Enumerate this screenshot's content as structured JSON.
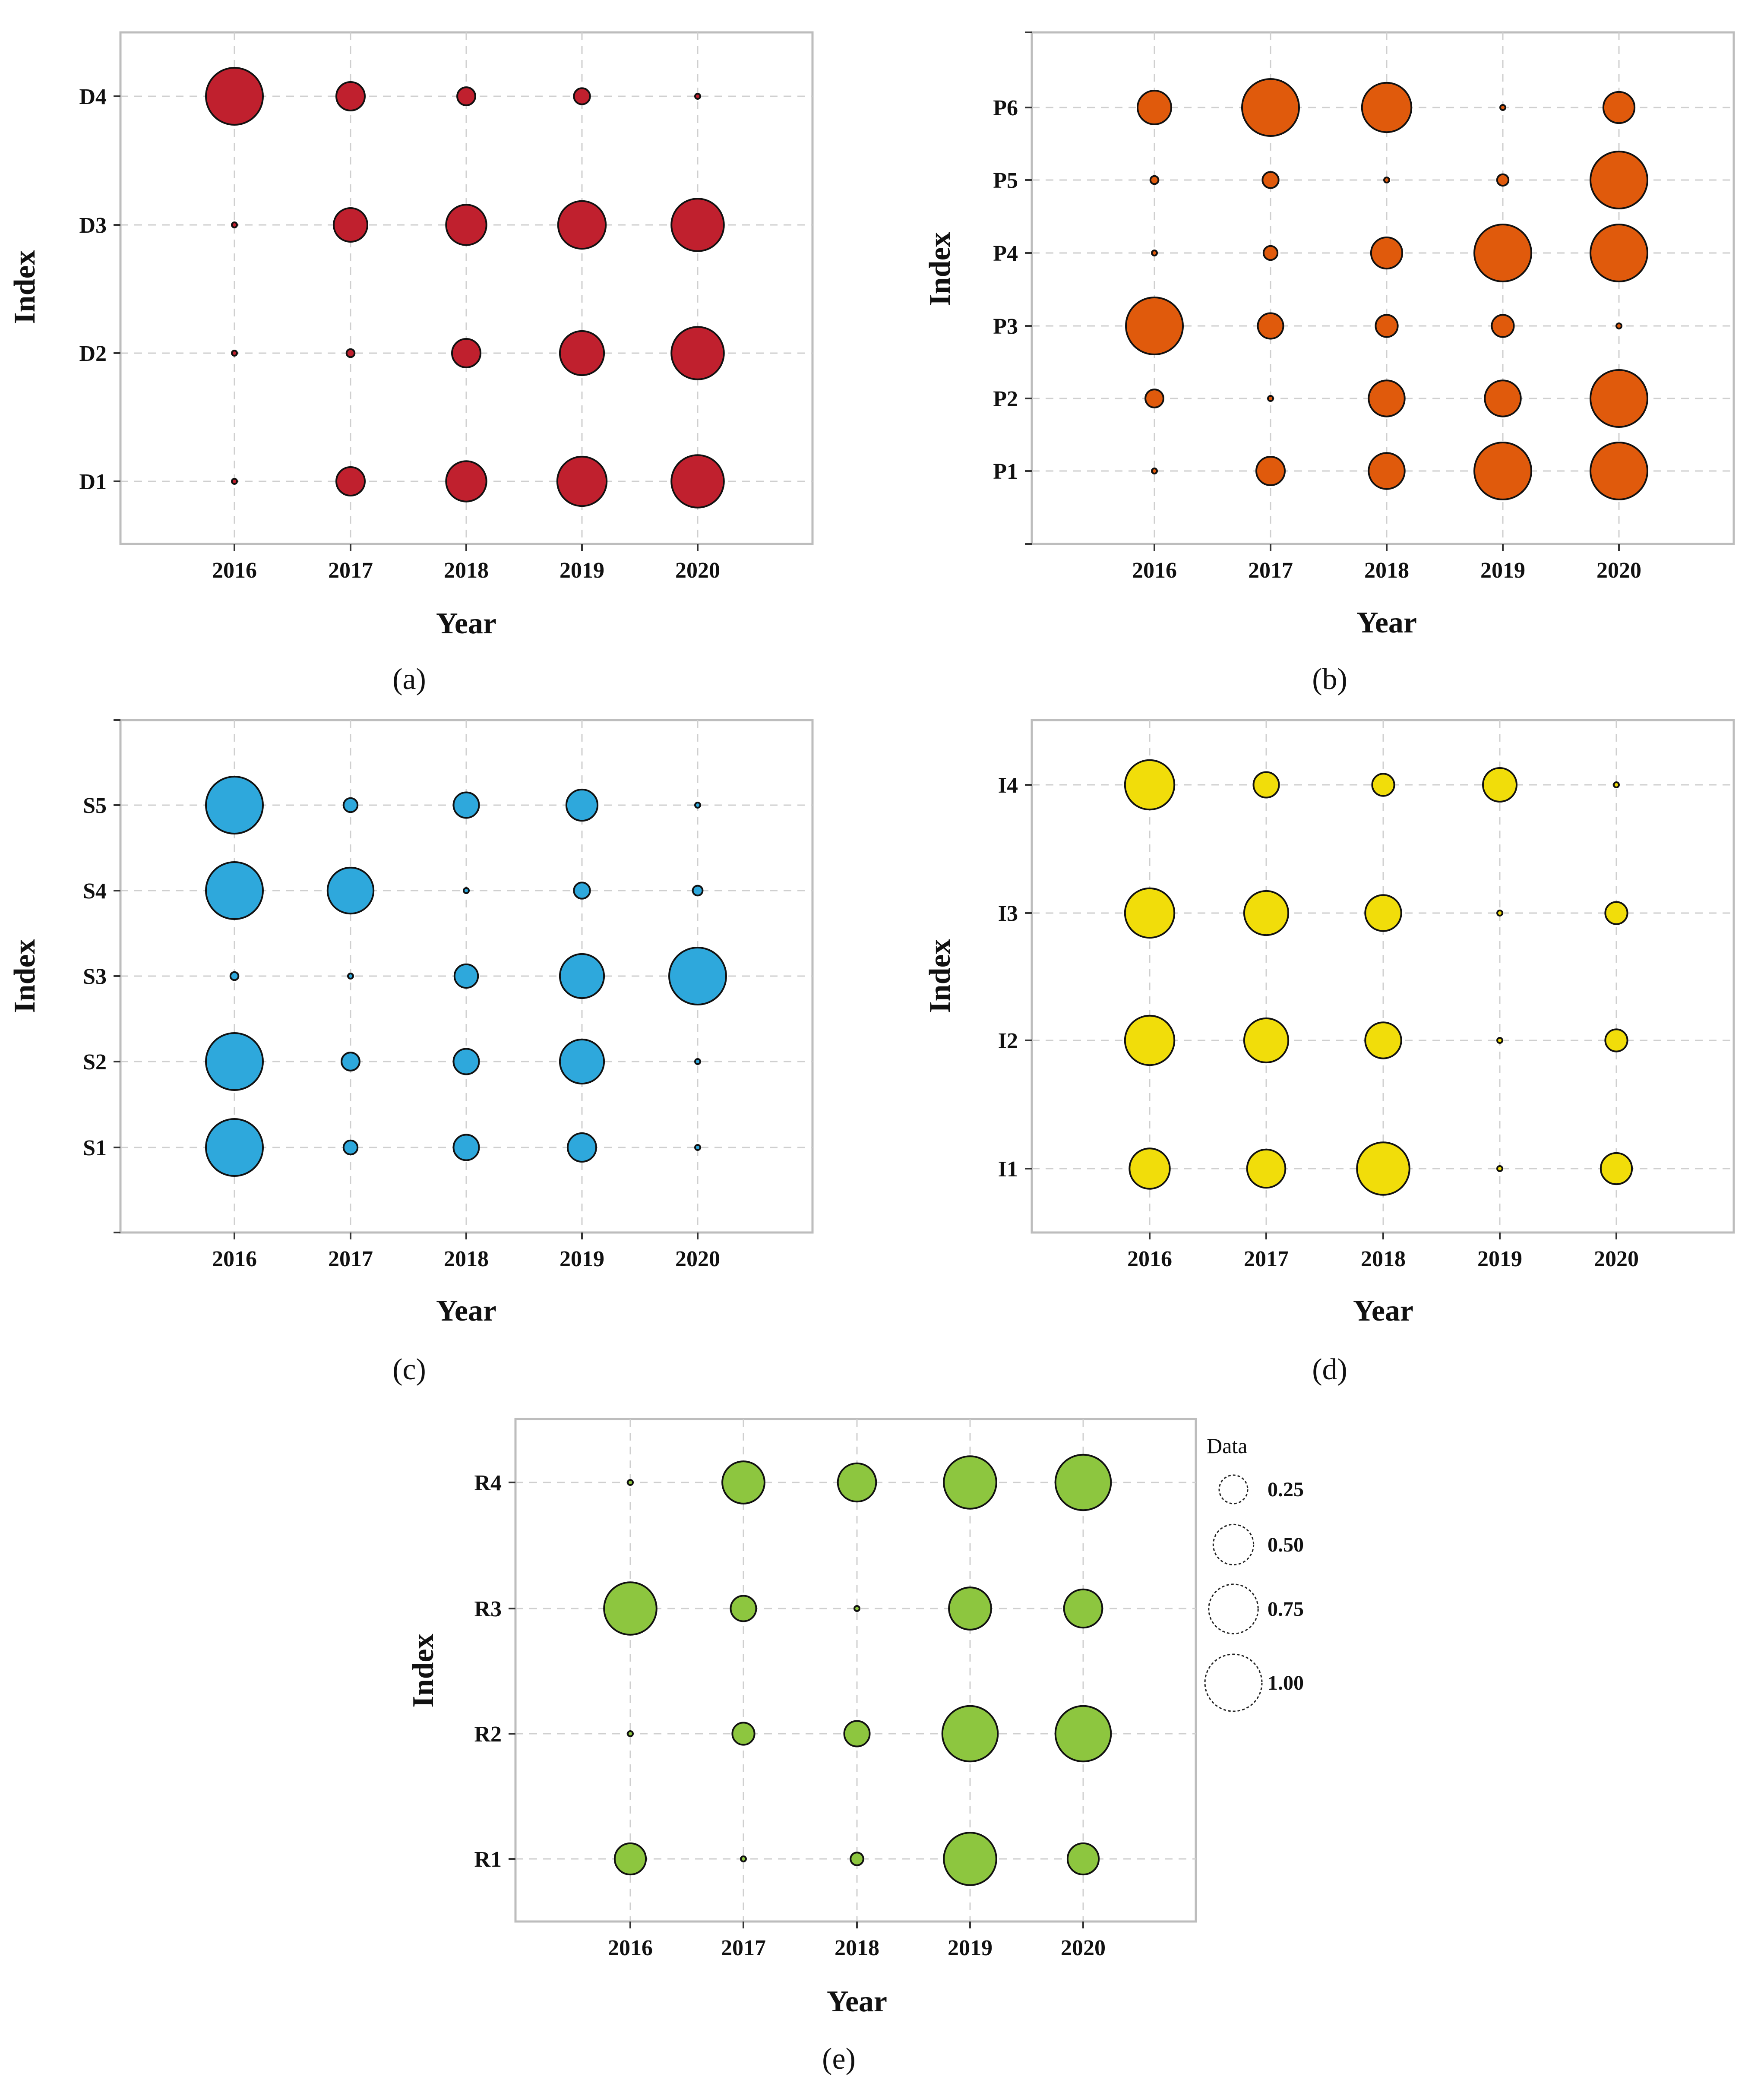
{
  "legend": {
    "title": "Data",
    "entries": [
      {
        "label": "0.25",
        "value": 0.25
      },
      {
        "label": "0.50",
        "value": 0.5
      },
      {
        "label": "0.75",
        "value": 0.75
      },
      {
        "label": "1.00",
        "value": 1.0
      }
    ]
  },
  "chart_data": [
    {
      "type": "scatter",
      "panel_label": "(a)",
      "xlabel": "Year",
      "ylabel": "Index",
      "color": "#c0202e",
      "categories": [
        "2016",
        "2017",
        "2018",
        "2019",
        "2020"
      ],
      "y_categories": [
        "D1",
        "D2",
        "D3",
        "D4"
      ],
      "series": [
        {
          "name": "D1",
          "values": [
            0.0,
            0.25,
            0.5,
            0.75,
            0.85
          ]
        },
        {
          "name": "D2",
          "values": [
            0.0,
            0.02,
            0.25,
            0.6,
            0.85
          ]
        },
        {
          "name": "D3",
          "values": [
            0.0,
            0.35,
            0.5,
            0.7,
            0.85
          ]
        },
        {
          "name": "D4",
          "values": [
            1.0,
            0.25,
            0.1,
            0.08,
            0.0
          ]
        }
      ]
    },
    {
      "type": "scatter",
      "panel_label": "(b)",
      "xlabel": "Year",
      "ylabel": "Index",
      "color": "#e05a0c",
      "categories": [
        "2016",
        "2017",
        "2018",
        "2019",
        "2020"
      ],
      "y_categories": [
        "P1",
        "P2",
        "P3",
        "P4",
        "P5",
        "P6"
      ],
      "series": [
        {
          "name": "P1",
          "values": [
            0.0,
            0.25,
            0.4,
            1.0,
            1.0
          ]
        },
        {
          "name": "P2",
          "values": [
            0.1,
            0.0,
            0.4,
            0.4,
            1.0
          ]
        },
        {
          "name": "P3",
          "values": [
            1.0,
            0.2,
            0.15,
            0.15,
            0.0
          ]
        },
        {
          "name": "P4",
          "values": [
            0.0,
            0.06,
            0.3,
            1.0,
            1.0
          ]
        },
        {
          "name": "P5",
          "values": [
            0.02,
            0.08,
            0.0,
            0.04,
            1.0
          ]
        },
        {
          "name": "P6",
          "values": [
            0.35,
            1.0,
            0.75,
            0.0,
            0.3
          ]
        }
      ]
    },
    {
      "type": "scatter",
      "panel_label": "(c)",
      "xlabel": "Year",
      "ylabel": "Index",
      "color": "#2ea8dc",
      "categories": [
        "2016",
        "2017",
        "2018",
        "2019",
        "2020"
      ],
      "y_categories": [
        "S1",
        "S2",
        "S3",
        "S4",
        "S5"
      ],
      "series": [
        {
          "name": "S1",
          "values": [
            1.0,
            0.06,
            0.2,
            0.25,
            0.0
          ]
        },
        {
          "name": "S2",
          "values": [
            1.0,
            0.1,
            0.2,
            0.6,
            0.0
          ]
        },
        {
          "name": "S3",
          "values": [
            0.02,
            0.0,
            0.17,
            0.6,
            1.0
          ]
        },
        {
          "name": "S4",
          "values": [
            1.0,
            0.65,
            0.0,
            0.08,
            0.03
          ]
        },
        {
          "name": "S5",
          "values": [
            1.0,
            0.06,
            0.2,
            0.3,
            0.0
          ]
        }
      ]
    },
    {
      "type": "scatter",
      "panel_label": "(d)",
      "xlabel": "Year",
      "ylabel": "Index",
      "color": "#f1dd0a",
      "categories": [
        "2016",
        "2017",
        "2018",
        "2019",
        "2020"
      ],
      "y_categories": [
        "I1",
        "I2",
        "I3",
        "I4"
      ],
      "series": [
        {
          "name": "I1",
          "values": [
            0.5,
            0.45,
            0.85,
            0.0,
            0.3
          ]
        },
        {
          "name": "I2",
          "values": [
            0.75,
            0.6,
            0.4,
            0.0,
            0.15
          ]
        },
        {
          "name": "I3",
          "values": [
            0.75,
            0.6,
            0.4,
            0.0,
            0.15
          ]
        },
        {
          "name": "I4",
          "values": [
            0.75,
            0.2,
            0.15,
            0.35,
            0.0
          ]
        }
      ]
    },
    {
      "type": "scatter",
      "panel_label": "(e)",
      "xlabel": "Year",
      "ylabel": "Index",
      "color": "#8dc63f",
      "categories": [
        "2016",
        "2017",
        "2018",
        "2019",
        "2020"
      ],
      "y_categories": [
        "R1",
        "R2",
        "R3",
        "R4"
      ],
      "series": [
        {
          "name": "R1",
          "values": [
            0.3,
            0.0,
            0.05,
            0.85,
            0.3
          ]
        },
        {
          "name": "R2",
          "values": [
            0.0,
            0.15,
            0.2,
            0.95,
            0.95
          ]
        },
        {
          "name": "R3",
          "values": [
            0.85,
            0.2,
            0.0,
            0.55,
            0.45
          ]
        },
        {
          "name": "R4",
          "values": [
            0.0,
            0.55,
            0.45,
            0.85,
            0.95
          ]
        }
      ]
    }
  ]
}
